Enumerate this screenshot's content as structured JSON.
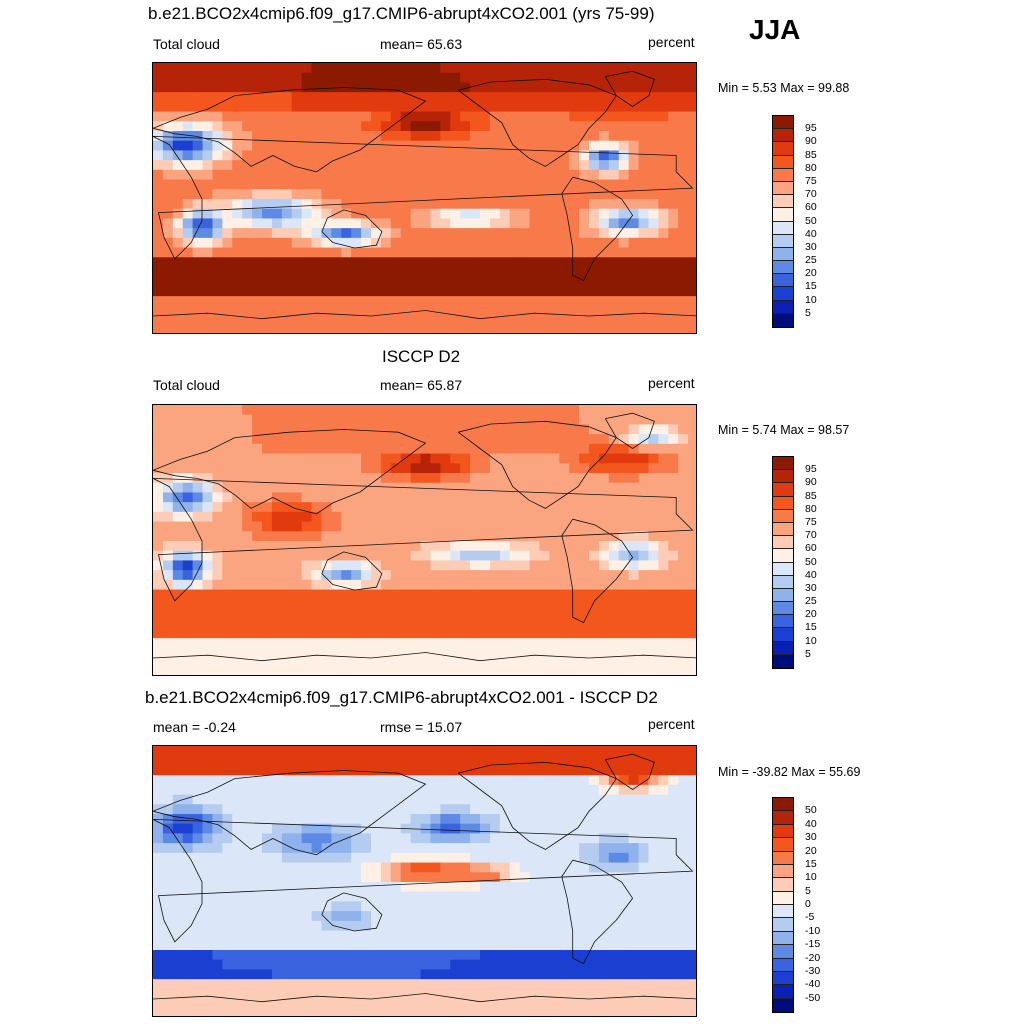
{
  "figure": {
    "season": "JJA"
  },
  "panels": [
    {
      "title": "b.e21.BCO2x4cmip6.f09_g17.CMIP6-abrupt4xCO2.001 (yrs 75-99)",
      "left": "Total cloud",
      "center": "mean=  65.63",
      "right": "percent",
      "minmax": "Min =   5.53 Max =  99.88",
      "levels": [
        "95",
        "90",
        "85",
        "80",
        "75",
        "70",
        "60",
        "50",
        "40",
        "30",
        "25",
        "20",
        "15",
        "10",
        "5"
      ],
      "colors": [
        "#8b1a00",
        "#b52308",
        "#e03a0e",
        "#f4571d",
        "#f87a4b",
        "#fba480",
        "#fdccb6",
        "#fff0e6",
        "#dbe6f8",
        "#b5ccf1",
        "#8fb1ec",
        "#5d8ae4",
        "#3a63df",
        "#1a3fd1",
        "#0a1fb4",
        "#000c7a"
      ],
      "field": "cloud_model"
    },
    {
      "title": "ISCCP D2",
      "left": "Total cloud",
      "center": "mean=  65.87",
      "right": "percent",
      "minmax": "Min =   5.74 Max =  98.57",
      "levels": [
        "95",
        "90",
        "85",
        "80",
        "75",
        "70",
        "60",
        "50",
        "40",
        "30",
        "25",
        "20",
        "15",
        "10",
        "5"
      ],
      "colors": [
        "#8b1a00",
        "#b52308",
        "#e03a0e",
        "#f4571d",
        "#f87a4b",
        "#fba480",
        "#fdccb6",
        "#fff0e6",
        "#dbe6f8",
        "#b5ccf1",
        "#8fb1ec",
        "#5d8ae4",
        "#3a63df",
        "#1a3fd1",
        "#0a1fb4",
        "#000c7a"
      ],
      "field": "cloud_obs"
    },
    {
      "title": "b.e21.BCO2x4cmip6.f09_g17.CMIP6-abrupt4xCO2.001 - ISCCP D2",
      "left": "mean =  -0.24",
      "center": "rmse =  15.07",
      "right": "percent",
      "minmax": "Min = -39.82 Max =  55.69",
      "levels": [
        "50",
        "40",
        "30",
        "20",
        "15",
        "10",
        "5",
        "0",
        "-5",
        "-10",
        "-15",
        "-20",
        "-30",
        "-40",
        "-50"
      ],
      "colors": [
        "#8b1a00",
        "#b52308",
        "#e03a0e",
        "#f4571d",
        "#f87a4b",
        "#fba480",
        "#fdccb6",
        "#fff0e6",
        "#dbe6f8",
        "#b5ccf1",
        "#8fb1ec",
        "#5d8ae4",
        "#3a63df",
        "#1a3fd1",
        "#0a1fb4",
        "#000c7a"
      ],
      "field": "cloud_diff"
    }
  ]
}
